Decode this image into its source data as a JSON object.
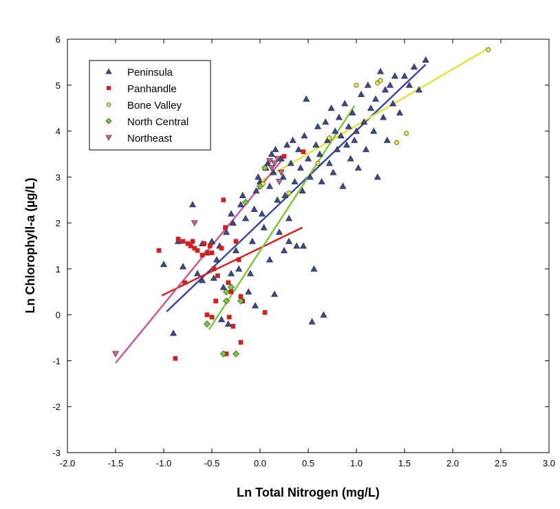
{
  "chart_data": {
    "type": "scatter",
    "title": "",
    "xlabel": "Ln Total Nitrogen (mg/L)",
    "ylabel": "Ln Chlorophyll-a (µg/L)",
    "xlim": [
      -2.0,
      3.0
    ],
    "ylim": [
      -3,
      6
    ],
    "x_ticks": [
      "-2.0",
      "-1.5",
      "-1.0",
      "-0.5",
      "0.0",
      "0.5",
      "1.0",
      "1.5",
      "2.0",
      "2.5",
      "3.0"
    ],
    "y_ticks": [
      "-3",
      "-2",
      "-1",
      "0",
      "1",
      "2",
      "3",
      "4",
      "5",
      "6"
    ],
    "grid": false,
    "legend_position": "top-left",
    "series": [
      {
        "name": "Peninsula",
        "marker": "triangle-up",
        "color": "#3a4a8f",
        "points": [
          [
            -1.0,
            1.1
          ],
          [
            -0.9,
            -0.4
          ],
          [
            -0.85,
            1.6
          ],
          [
            -0.8,
            1.05
          ],
          [
            -0.7,
            2.4
          ],
          [
            -0.65,
            0.9
          ],
          [
            -0.6,
            1.55
          ],
          [
            -0.55,
            1.35
          ],
          [
            -0.5,
            1.6
          ],
          [
            -0.48,
            0.8
          ],
          [
            -0.45,
            1.2
          ],
          [
            -0.42,
            1.5
          ],
          [
            -0.4,
            -0.1
          ],
          [
            -0.38,
            0.6
          ],
          [
            -0.35,
            1.8
          ],
          [
            -0.33,
            -0.2
          ],
          [
            -0.3,
            2.2
          ],
          [
            -0.28,
            2.0
          ],
          [
            -0.25,
            1.4
          ],
          [
            -0.22,
            1.0
          ],
          [
            -0.2,
            2.4
          ],
          [
            -0.18,
            2.6
          ],
          [
            -0.15,
            2.1
          ],
          [
            -0.12,
            0.5
          ],
          [
            -0.1,
            0.9
          ],
          [
            -0.08,
            1.6
          ],
          [
            -0.06,
            2.3
          ],
          [
            -0.04,
            2.7
          ],
          [
            -0.02,
            3.0
          ],
          [
            0.0,
            2.9
          ],
          [
            0.02,
            2.2
          ],
          [
            0.04,
            1.9
          ],
          [
            0.06,
            3.2
          ],
          [
            0.08,
            3.3
          ],
          [
            0.1,
            2.8
          ],
          [
            0.12,
            3.5
          ],
          [
            0.14,
            3.1
          ],
          [
            0.16,
            3.6
          ],
          [
            0.18,
            2.5
          ],
          [
            0.2,
            1.8
          ],
          [
            0.22,
            3.4
          ],
          [
            0.24,
            3.0
          ],
          [
            0.26,
            2.6
          ],
          [
            0.28,
            3.7
          ],
          [
            0.3,
            2.1
          ],
          [
            0.32,
            3.3
          ],
          [
            0.34,
            3.8
          ],
          [
            0.36,
            2.9
          ],
          [
            0.38,
            1.5
          ],
          [
            0.4,
            3.6
          ],
          [
            0.42,
            3.2
          ],
          [
            0.44,
            2.7
          ],
          [
            0.46,
            3.9
          ],
          [
            0.48,
            4.7
          ],
          [
            0.5,
            3.4
          ],
          [
            0.52,
            3.0
          ],
          [
            0.54,
            -0.15
          ],
          [
            0.56,
            1.0
          ],
          [
            0.58,
            3.7
          ],
          [
            0.6,
            4.1
          ],
          [
            0.62,
            3.5
          ],
          [
            0.64,
            2.9
          ],
          [
            0.66,
            0.0
          ],
          [
            0.68,
            4.2
          ],
          [
            0.7,
            3.8
          ],
          [
            0.72,
            3.3
          ],
          [
            0.74,
            4.5
          ],
          [
            0.76,
            3.1
          ],
          [
            0.78,
            4.0
          ],
          [
            0.8,
            3.6
          ],
          [
            0.82,
            4.3
          ],
          [
            0.84,
            3.9
          ],
          [
            0.86,
            2.8
          ],
          [
            0.88,
            4.6
          ],
          [
            0.9,
            3.7
          ],
          [
            0.92,
            4.1
          ],
          [
            0.94,
            3.4
          ],
          [
            0.96,
            4.4
          ],
          [
            0.98,
            3.8
          ],
          [
            1.0,
            4.0
          ],
          [
            1.02,
            3.2
          ],
          [
            1.05,
            4.8
          ],
          [
            1.08,
            4.2
          ],
          [
            1.1,
            3.6
          ],
          [
            1.12,
            5.0
          ],
          [
            1.15,
            4.5
          ],
          [
            1.18,
            4.0
          ],
          [
            1.2,
            4.7
          ],
          [
            1.22,
            3.0
          ],
          [
            1.25,
            5.3
          ],
          [
            1.28,
            4.3
          ],
          [
            1.3,
            4.9
          ],
          [
            1.32,
            3.8
          ],
          [
            1.35,
            5.0
          ],
          [
            1.38,
            4.6
          ],
          [
            1.4,
            5.2
          ],
          [
            1.45,
            4.4
          ],
          [
            1.5,
            5.2
          ],
          [
            1.55,
            5.0
          ],
          [
            1.6,
            5.4
          ],
          [
            1.65,
            4.9
          ],
          [
            1.72,
            5.55
          ],
          [
            -0.6,
            0.75
          ],
          [
            -0.3,
            0.9
          ],
          [
            0.15,
            0.45
          ],
          [
            -0.05,
            0.2
          ],
          [
            0.1,
            1.2
          ],
          [
            0.3,
            1.6
          ],
          [
            0.25,
            1.4
          ],
          [
            0.45,
            1.5
          ]
        ]
      },
      {
        "name": "Panhandle",
        "marker": "square",
        "color": "#cc2222",
        "points": [
          [
            -1.05,
            1.4
          ],
          [
            -0.88,
            -0.95
          ],
          [
            -0.85,
            1.65
          ],
          [
            -0.8,
            1.6
          ],
          [
            -0.78,
            0.7
          ],
          [
            -0.75,
            1.55
          ],
          [
            -0.72,
            1.5
          ],
          [
            -0.7,
            1.6
          ],
          [
            -0.68,
            1.45
          ],
          [
            -0.65,
            1.4
          ],
          [
            -0.6,
            1.3
          ],
          [
            -0.58,
            1.55
          ],
          [
            -0.55,
            1.35
          ],
          [
            -0.52,
            1.5
          ],
          [
            -0.5,
            1.35
          ],
          [
            -0.48,
            1.0
          ],
          [
            -0.46,
            0.3
          ],
          [
            -0.44,
            0.85
          ],
          [
            -0.4,
            1.45
          ],
          [
            -0.38,
            2.5
          ],
          [
            -0.36,
            1.9
          ],
          [
            -0.35,
            -0.85
          ],
          [
            -0.33,
            0.7
          ],
          [
            -0.32,
            -0.05
          ],
          [
            -0.3,
            0.5
          ],
          [
            -0.28,
            -0.25
          ],
          [
            -0.25,
            1.6
          ],
          [
            -0.22,
            1.2
          ],
          [
            -0.2,
            0.4
          ],
          [
            -0.18,
            0.3
          ],
          [
            -0.2,
            -0.6
          ],
          [
            0.05,
            0.05
          ],
          [
            0.25,
            3.45
          ],
          [
            0.45,
            3.55
          ],
          [
            -0.55,
            0.0
          ],
          [
            -0.5,
            -0.05
          ]
        ]
      },
      {
        "name": "Bone Valley",
        "marker": "circle",
        "color": "#e8e84a",
        "points": [
          [
            0.03,
            2.85
          ],
          [
            0.3,
            2.65
          ],
          [
            0.6,
            3.3
          ],
          [
            0.72,
            3.85
          ],
          [
            1.0,
            5.0
          ],
          [
            1.22,
            5.05
          ],
          [
            1.25,
            5.1
          ],
          [
            1.42,
            3.75
          ],
          [
            1.52,
            3.95
          ],
          [
            2.37,
            5.77
          ]
        ]
      },
      {
        "name": "North Central",
        "marker": "diamond",
        "color": "#7ec83a",
        "points": [
          [
            -0.55,
            -0.2
          ],
          [
            -0.38,
            -0.85
          ],
          [
            -0.35,
            0.3
          ],
          [
            -0.35,
            0.5
          ],
          [
            -0.3,
            0.6
          ],
          [
            -0.25,
            -0.85
          ],
          [
            -0.2,
            0.3
          ],
          [
            -0.15,
            2.45
          ],
          [
            0.0,
            2.8
          ],
          [
            0.05,
            3.2
          ]
        ]
      },
      {
        "name": "Northeast",
        "marker": "triangle-down",
        "color": "#d0609a",
        "points": [
          [
            -1.5,
            -0.85
          ],
          [
            -0.68,
            2.0
          ],
          [
            0.1,
            3.35
          ],
          [
            0.12,
            3.2
          ],
          [
            0.15,
            3.3
          ],
          [
            0.18,
            3.4
          ],
          [
            0.2,
            2.9
          ],
          [
            0.22,
            3.1
          ]
        ]
      }
    ],
    "fit_lines": [
      {
        "series": "Peninsula",
        "color": "#3a4a9a",
        "x": [
          -0.97,
          1.72
        ],
        "y": [
          0.07,
          5.45
        ]
      },
      {
        "series": "Panhandle",
        "color": "#d42020",
        "x": [
          -1.02,
          0.44
        ],
        "y": [
          0.42,
          1.9
        ]
      },
      {
        "series": "Bone Valley",
        "color": "#e2e23c",
        "x": [
          0.0,
          2.37
        ],
        "y": [
          2.9,
          5.8
        ]
      },
      {
        "series": "North Central",
        "color": "#7cc83a",
        "x": [
          -0.53,
          0.98
        ],
        "y": [
          -0.32,
          4.55
        ]
      },
      {
        "series": "Northeast",
        "color": "#c8589a",
        "x": [
          -1.5,
          0.22
        ],
        "y": [
          -1.05,
          3.35
        ]
      }
    ]
  }
}
